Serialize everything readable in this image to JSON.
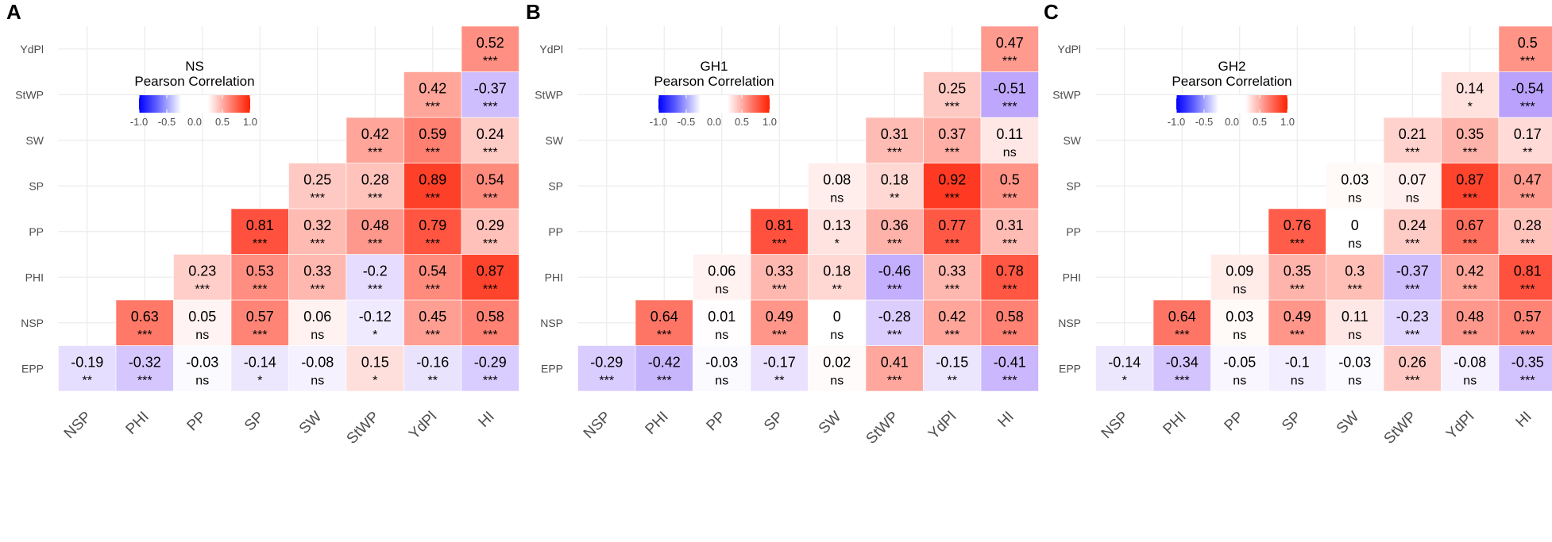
{
  "chart_data": [
    {
      "type": "heatmap",
      "panel": "A",
      "legend_title": [
        "NS",
        "Pearson Correlation"
      ],
      "legend_ticks": [
        "-1.0",
        "-0.5",
        "0.0",
        "0.5",
        "1.0"
      ],
      "x": [
        "NSP",
        "PHI",
        "PP",
        "SP",
        "SW",
        "StWP",
        "YdPl",
        "HI"
      ],
      "y": [
        "EPP",
        "NSP",
        "PHI",
        "PP",
        "SP",
        "SW",
        "StWP",
        "YdPl"
      ],
      "color_range": [
        -1,
        1
      ],
      "cells": [
        {
          "row": "EPP",
          "values": [
            -0.19,
            -0.32,
            -0.03,
            -0.14,
            -0.08,
            0.15,
            -0.16,
            -0.29
          ],
          "sig": [
            "**",
            "***",
            "ns",
            "*",
            "ns",
            "*",
            "**",
            "***"
          ]
        },
        {
          "row": "NSP",
          "values": [
            null,
            0.63,
            0.05,
            0.57,
            0.06,
            -0.12,
            0.45,
            0.58
          ],
          "sig": [
            null,
            "***",
            "ns",
            "***",
            "ns",
            "*",
            "***",
            "***"
          ]
        },
        {
          "row": "PHI",
          "values": [
            null,
            null,
            0.23,
            0.53,
            0.33,
            -0.2,
            0.54,
            0.87
          ],
          "sig": [
            null,
            null,
            "***",
            "***",
            "***",
            "***",
            "***",
            "***"
          ]
        },
        {
          "row": "PP",
          "values": [
            null,
            null,
            null,
            0.81,
            0.32,
            0.48,
            0.79,
            0.29
          ],
          "sig": [
            null,
            null,
            null,
            "***",
            "***",
            "***",
            "***",
            "***"
          ]
        },
        {
          "row": "SP",
          "values": [
            null,
            null,
            null,
            null,
            0.25,
            0.28,
            0.89,
            0.54
          ],
          "sig": [
            null,
            null,
            null,
            null,
            "***",
            "***",
            "***",
            "***"
          ]
        },
        {
          "row": "SW",
          "values": [
            null,
            null,
            null,
            null,
            null,
            0.42,
            0.59,
            0.24
          ],
          "sig": [
            null,
            null,
            null,
            null,
            null,
            "***",
            "***",
            "***"
          ]
        },
        {
          "row": "StWP",
          "values": [
            null,
            null,
            null,
            null,
            null,
            null,
            0.42,
            -0.37
          ],
          "sig": [
            null,
            null,
            null,
            null,
            null,
            null,
            "***",
            "***"
          ]
        },
        {
          "row": "YdPl",
          "values": [
            null,
            null,
            null,
            null,
            null,
            null,
            null,
            0.52
          ],
          "sig": [
            null,
            null,
            null,
            null,
            null,
            null,
            null,
            "***"
          ]
        }
      ]
    },
    {
      "type": "heatmap",
      "panel": "B",
      "legend_title": [
        "GH1",
        "Pearson Correlation"
      ],
      "legend_ticks": [
        "-1.0",
        "-0.5",
        "0.0",
        "0.5",
        "1.0"
      ],
      "x": [
        "NSP",
        "PHI",
        "PP",
        "SP",
        "SW",
        "StWP",
        "YdPl",
        "HI"
      ],
      "y": [
        "EPP",
        "NSP",
        "PHI",
        "PP",
        "SP",
        "SW",
        "StWP",
        "YdPl"
      ],
      "color_range": [
        -1,
        1
      ],
      "cells": [
        {
          "row": "EPP",
          "values": [
            -0.29,
            -0.42,
            -0.03,
            -0.17,
            0.02,
            0.41,
            -0.15,
            -0.41
          ],
          "sig": [
            "***",
            "***",
            "ns",
            "**",
            "ns",
            "***",
            "**",
            "***"
          ]
        },
        {
          "row": "NSP",
          "values": [
            null,
            0.64,
            0.01,
            0.49,
            0,
            -0.28,
            0.42,
            0.58
          ],
          "sig": [
            null,
            "***",
            "ns",
            "***",
            "ns",
            "***",
            "***",
            "***"
          ]
        },
        {
          "row": "PHI",
          "values": [
            null,
            null,
            0.06,
            0.33,
            0.18,
            -0.46,
            0.33,
            0.78
          ],
          "sig": [
            null,
            null,
            "ns",
            "***",
            "**",
            "***",
            "***",
            "***"
          ]
        },
        {
          "row": "PP",
          "values": [
            null,
            null,
            null,
            0.81,
            0.13,
            0.36,
            0.77,
            0.31
          ],
          "sig": [
            null,
            null,
            null,
            "***",
            "*",
            "***",
            "***",
            "***"
          ]
        },
        {
          "row": "SP",
          "values": [
            null,
            null,
            null,
            null,
            0.08,
            0.18,
            0.92,
            0.5
          ],
          "sig": [
            null,
            null,
            null,
            null,
            "ns",
            "**",
            "***",
            "***"
          ]
        },
        {
          "row": "SW",
          "values": [
            null,
            null,
            null,
            null,
            null,
            0.31,
            0.37,
            0.11
          ],
          "sig": [
            null,
            null,
            null,
            null,
            null,
            "***",
            "***",
            "ns"
          ]
        },
        {
          "row": "StWP",
          "values": [
            null,
            null,
            null,
            null,
            null,
            null,
            0.25,
            -0.51
          ],
          "sig": [
            null,
            null,
            null,
            null,
            null,
            null,
            "***",
            "***"
          ]
        },
        {
          "row": "YdPl",
          "values": [
            null,
            null,
            null,
            null,
            null,
            null,
            null,
            0.47
          ],
          "sig": [
            null,
            null,
            null,
            null,
            null,
            null,
            null,
            "***"
          ]
        }
      ]
    },
    {
      "type": "heatmap",
      "panel": "C",
      "legend_title": [
        "GH2",
        "Pearson Correlation"
      ],
      "legend_ticks": [
        "-1.0",
        "-0.5",
        "0.0",
        "0.5",
        "1.0"
      ],
      "x": [
        "NSP",
        "PHI",
        "PP",
        "SP",
        "SW",
        "StWP",
        "YdPl",
        "HI"
      ],
      "y": [
        "EPP",
        "NSP",
        "PHI",
        "PP",
        "SP",
        "SW",
        "StWP",
        "YdPl"
      ],
      "color_range": [
        -1,
        1
      ],
      "cells": [
        {
          "row": "EPP",
          "values": [
            -0.14,
            -0.34,
            -0.05,
            -0.1,
            -0.03,
            0.26,
            -0.08,
            -0.35
          ],
          "sig": [
            "*",
            "***",
            "ns",
            "ns",
            "ns",
            "***",
            "ns",
            "***"
          ]
        },
        {
          "row": "NSP",
          "values": [
            null,
            0.64,
            0.03,
            0.49,
            0.11,
            -0.23,
            0.48,
            0.57
          ],
          "sig": [
            null,
            "***",
            "ns",
            "***",
            "ns",
            "***",
            "***",
            "***"
          ]
        },
        {
          "row": "PHI",
          "values": [
            null,
            null,
            0.09,
            0.35,
            0.3,
            -0.37,
            0.42,
            0.81
          ],
          "sig": [
            null,
            null,
            "ns",
            "***",
            "***",
            "***",
            "***",
            "***"
          ]
        },
        {
          "row": "PP",
          "values": [
            null,
            null,
            null,
            0.76,
            0,
            0.24,
            0.67,
            0.28
          ],
          "sig": [
            null,
            null,
            null,
            "***",
            "ns",
            "***",
            "***",
            "***"
          ]
        },
        {
          "row": "SP",
          "values": [
            null,
            null,
            null,
            null,
            0.03,
            0.07,
            0.87,
            0.47
          ],
          "sig": [
            null,
            null,
            null,
            null,
            "ns",
            "ns",
            "***",
            "***"
          ]
        },
        {
          "row": "SW",
          "values": [
            null,
            null,
            null,
            null,
            null,
            0.21,
            0.35,
            0.17
          ],
          "sig": [
            null,
            null,
            null,
            null,
            null,
            "***",
            "***",
            "**"
          ]
        },
        {
          "row": "StWP",
          "values": [
            null,
            null,
            null,
            null,
            null,
            null,
            0.14,
            -0.54
          ],
          "sig": [
            null,
            null,
            null,
            null,
            null,
            null,
            "*",
            "***"
          ]
        },
        {
          "row": "YdPl",
          "values": [
            null,
            null,
            null,
            null,
            null,
            null,
            null,
            0.5
          ],
          "sig": [
            null,
            null,
            null,
            null,
            null,
            null,
            null,
            "***"
          ]
        }
      ]
    }
  ],
  "colors": {
    "negative": "#8b5cf6",
    "negative_legend": "#0000ff",
    "zero": "#ffffff",
    "positive": "#ff2200",
    "grid": "#ebebeb",
    "tick_text": "#4d4d4d"
  }
}
